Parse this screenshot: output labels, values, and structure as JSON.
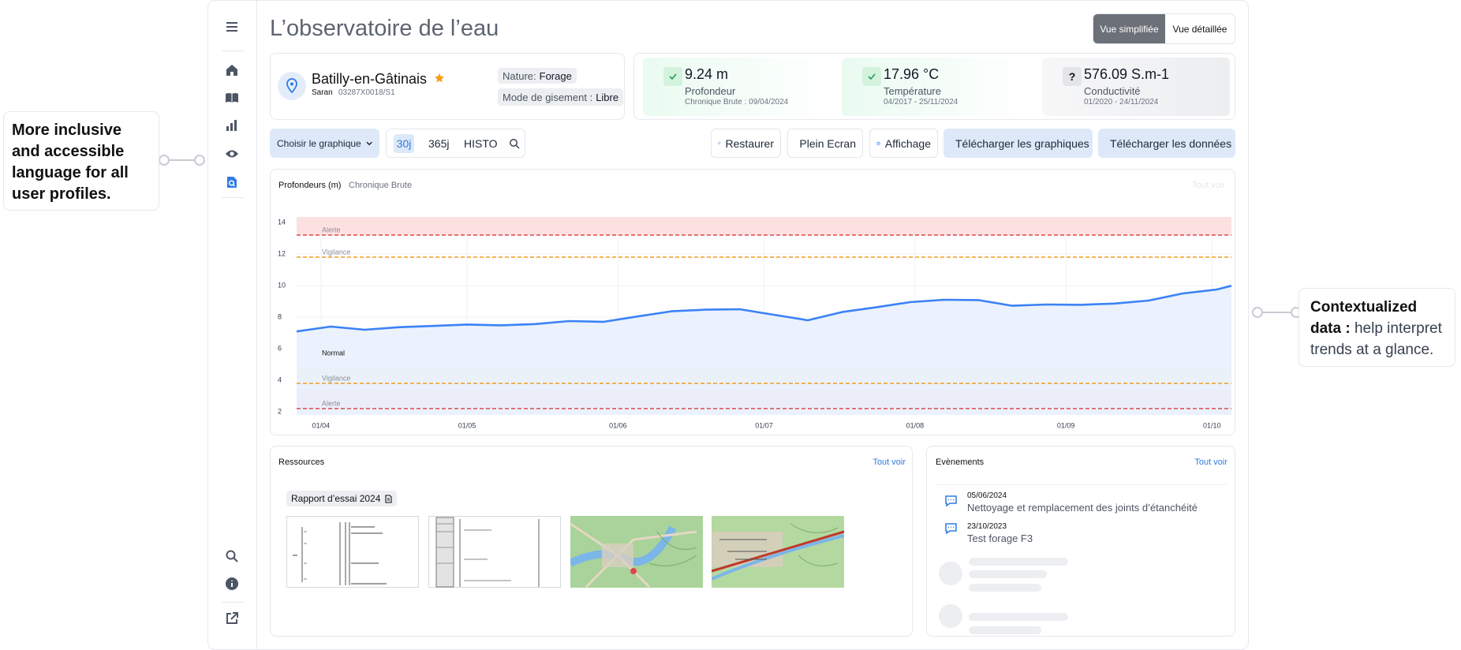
{
  "callouts": {
    "left": "More inclusive and accessible language for all user profiles.",
    "right": {
      "emphasis": "Contextualized data :",
      "text": "help interpret trends at a glance."
    }
  },
  "header": {
    "title": "L’observatoire de l’eau",
    "views": [
      "Vue simplifiée",
      "Vue détaillée"
    ]
  },
  "station": {
    "name": "Batilly-en-Gâtinais",
    "commune": "Saran",
    "code": "03287X0018/S1",
    "nature_label": "Nature:",
    "nature": "Forage",
    "mode_label": "Mode de gisement :",
    "mode": "Libre"
  },
  "metrics": [
    {
      "value": "9.24 m",
      "label": "Profondeur",
      "detail": "Chronique Brute : 09/04/2024"
    },
    {
      "value": "17.96 °C",
      "label": "Température",
      "detail": "04/2017 - 25/11/2024"
    },
    {
      "badge": "?",
      "value": "576.09 S.m-1",
      "label": "Conductivité",
      "detail": "01/2020 - 24/11/2024"
    }
  ],
  "toolbar": {
    "chooser": "Choisir le graphique",
    "periods": [
      "30j",
      "365j",
      "HISTO"
    ],
    "actions": [
      "Restaurer",
      "Plein Ecran",
      "Affichage",
      "Télécharger les graphiques",
      "Télécharger les données"
    ]
  },
  "chart_card": {
    "link": "Tout voir"
  },
  "chart_data": {
    "type": "area",
    "title": "Profondeurs (m)",
    "subtitle": "Chronique Brute",
    "color": "#3b82f6",
    "fill": "#e8f0fd",
    "grid": true,
    "x": [
      "27/03",
      "03/04",
      "10/04",
      "17/04",
      "24/04",
      "01/05",
      "08/05",
      "15/05",
      "22/05",
      "29/05",
      "05/06",
      "12/06",
      "19/06",
      "26/06",
      "03/07",
      "10/07",
      "17/07",
      "24/07",
      "31/07",
      "07/08",
      "14/08",
      "21/08",
      "28/08",
      "04/09",
      "11/09",
      "18/09",
      "25/09",
      "02/10",
      "05/10"
    ],
    "values": [
      7.09,
      7.4,
      7.2,
      7.36,
      7.44,
      7.53,
      7.48,
      7.56,
      7.75,
      7.7,
      8.04,
      8.37,
      8.47,
      8.5,
      8.15,
      7.8,
      8.32,
      8.62,
      8.95,
      9.1,
      9.08,
      8.72,
      8.8,
      8.78,
      8.86,
      9.05,
      9.5,
      9.75,
      9.99
    ],
    "xlim": [
      "27/03",
      "05/10"
    ],
    "xticks": [
      "01/04",
      "01/05",
      "01/06",
      "01/07",
      "01/08",
      "01/09",
      "01/10"
    ],
    "ylim": [
      1.8,
      14.35
    ],
    "yticks": [
      2,
      4,
      6,
      8,
      10,
      12,
      14
    ],
    "zones": [
      {
        "label": "Alerte",
        "threshold": 13.2,
        "band": [
          13.2,
          14.35
        ],
        "color": "#e0474c",
        "band_color": "#fde1e1"
      },
      {
        "label": "Vigilance",
        "threshold": 11.8,
        "color": "#f29a1f"
      },
      {
        "label": "Vigilance",
        "threshold": 3.8,
        "band": [
          3.8,
          4.8
        ],
        "color": "#f29a1f",
        "band_color": "#fef6e3"
      },
      {
        "label": "Alerte",
        "threshold": 2.2,
        "band": [
          2.2,
          3.4
        ],
        "color": "#e0474c",
        "band_color": "#fde1e1"
      }
    ],
    "normal_label": "Normal"
  },
  "resources": {
    "title": "Ressources",
    "link": "Tout voir",
    "document": "Rapport d’essai 2024"
  },
  "events": {
    "title": "Evènements",
    "link": "Tout voir",
    "items": [
      {
        "date": "05/06/2024",
        "text": "Nettoyage et remplacement des joints d’étanchéité"
      },
      {
        "date": "23/10/2023",
        "text": "Test forage F3"
      }
    ]
  }
}
